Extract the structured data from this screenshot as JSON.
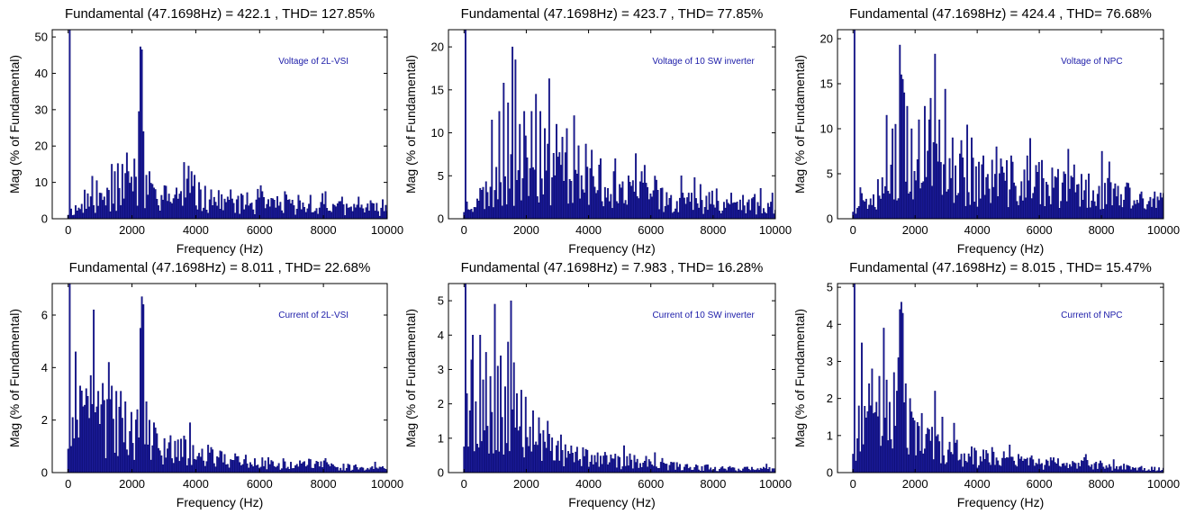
{
  "colors": {
    "bar": "#1c1c9a",
    "bar_edge": "#000066",
    "axis": "#000000",
    "annotation": "#1a1aa8"
  },
  "chart_data": [
    {
      "type": "bar",
      "title": "Fundamental (47.1698Hz) = 422.1 , THD= 127.85%",
      "annotation": "Voltage of 2L-VSI",
      "xlabel": "Frequency (Hz)",
      "ylabel": "Mag (% of Fundamental)",
      "xlim": [
        -500,
        10000
      ],
      "ylim": [
        0,
        52
      ],
      "xticks": [
        0,
        2000,
        4000,
        6000,
        8000,
        10000
      ],
      "yticks": [
        0,
        10,
        20,
        30,
        40,
        50
      ],
      "grid": false,
      "bin_hz": 47.1698,
      "fundamental_value": 100,
      "peaks": [
        [
          900,
          10.5
        ],
        [
          1350,
          15
        ],
        [
          1450,
          13
        ],
        [
          1550,
          15.2
        ],
        [
          1700,
          15
        ],
        [
          1800,
          12.5
        ],
        [
          1900,
          13
        ],
        [
          2000,
          11.5
        ],
        [
          2100,
          11.5
        ],
        [
          2200,
          29.5
        ],
        [
          2250,
          47.3
        ],
        [
          2300,
          46.5
        ],
        [
          2350,
          24
        ],
        [
          2450,
          12
        ],
        [
          2550,
          13
        ],
        [
          2650,
          9.5
        ],
        [
          3050,
          9
        ],
        [
          3400,
          8.5
        ],
        [
          3650,
          15.5
        ],
        [
          3750,
          14.5
        ],
        [
          3850,
          13
        ],
        [
          3950,
          12
        ],
        [
          4100,
          10
        ],
        [
          4300,
          9
        ],
        [
          4500,
          8
        ],
        [
          5100,
          8
        ],
        [
          5600,
          7.2
        ],
        [
          6100,
          7.5
        ],
        [
          6800,
          7.5
        ],
        [
          7200,
          6.5
        ],
        [
          7600,
          6.5
        ],
        [
          8050,
          7.5
        ],
        [
          8600,
          6
        ],
        [
          9100,
          6
        ],
        [
          9500,
          5
        ]
      ],
      "profile": [
        [
          0,
          2
        ],
        [
          1000,
          6
        ],
        [
          2000,
          8
        ],
        [
          3000,
          6.5
        ],
        [
          4000,
          6
        ],
        [
          6000,
          4
        ],
        [
          8000,
          3.5
        ],
        [
          10000,
          2.8
        ]
      ],
      "seed": 11
    },
    {
      "type": "bar",
      "title": "Fundamental (47.1698Hz) = 423.7 , THD= 77.85%",
      "annotation": "Voltage of 10 SW inverter",
      "xlabel": "Frequency (Hz)",
      "ylabel": "Mag (% of Fundamental)",
      "xlim": [
        -500,
        10000
      ],
      "ylim": [
        0,
        22
      ],
      "xticks": [
        0,
        2000,
        4000,
        6000,
        8000,
        10000
      ],
      "yticks": [
        0,
        5,
        10,
        15,
        20
      ],
      "grid": false,
      "bin_hz": 47.1698,
      "fundamental_value": 100,
      "peaks": [
        [
          900,
          11.5
        ],
        [
          1150,
          12.5
        ],
        [
          1250,
          15.8
        ],
        [
          1400,
          13.5
        ],
        [
          1550,
          20
        ],
        [
          1650,
          18.5
        ],
        [
          1800,
          11
        ],
        [
          1950,
          12.5
        ],
        [
          2150,
          12.5
        ],
        [
          2300,
          14.5
        ],
        [
          2450,
          12.5
        ],
        [
          2600,
          10.5
        ],
        [
          2750,
          16.3
        ],
        [
          2950,
          11
        ],
        [
          3150,
          9.5
        ],
        [
          3300,
          10.5
        ],
        [
          3550,
          12
        ],
        [
          3700,
          8.5
        ],
        [
          3900,
          8.7
        ],
        [
          4100,
          8
        ],
        [
          4400,
          7
        ],
        [
          4800,
          5.5
        ],
        [
          5300,
          5
        ],
        [
          5700,
          5.5
        ],
        [
          6200,
          4.5
        ],
        [
          7000,
          5
        ],
        [
          7600,
          4
        ],
        [
          8100,
          3.5
        ],
        [
          8600,
          3
        ],
        [
          9300,
          2.5
        ],
        [
          9900,
          3
        ]
      ],
      "profile": [
        [
          0,
          1.5
        ],
        [
          1000,
          4
        ],
        [
          2000,
          6.5
        ],
        [
          3000,
          6
        ],
        [
          4000,
          4.5
        ],
        [
          6000,
          2.8
        ],
        [
          8000,
          2
        ],
        [
          10000,
          1.5
        ]
      ],
      "seed": 23
    },
    {
      "type": "bar",
      "title": "Fundamental (47.1698Hz) = 424.4 , THD= 76.68%",
      "annotation": "Voltage of NPC",
      "xlabel": "Frequency (Hz)",
      "ylabel": "Mag (% of Fundamental)",
      "xlim": [
        -500,
        10000
      ],
      "ylim": [
        0,
        21
      ],
      "xticks": [
        0,
        2000,
        4000,
        6000,
        8000,
        10000
      ],
      "yticks": [
        0,
        5,
        10,
        15,
        20
      ],
      "grid": false,
      "bin_hz": 47.1698,
      "fundamental_value": 100,
      "peaks": [
        [
          1100,
          11.5
        ],
        [
          1250,
          10
        ],
        [
          1350,
          10.5
        ],
        [
          1500,
          19.3
        ],
        [
          1550,
          16
        ],
        [
          1600,
          15.5
        ],
        [
          1650,
          14
        ],
        [
          1750,
          12.5
        ],
        [
          1900,
          10
        ],
        [
          2100,
          11
        ],
        [
          2300,
          12.5
        ],
        [
          2450,
          11
        ],
        [
          2650,
          18.3
        ],
        [
          2800,
          11
        ],
        [
          2950,
          14.4
        ],
        [
          3200,
          9
        ],
        [
          3500,
          8.7
        ],
        [
          3800,
          9
        ],
        [
          4200,
          7
        ],
        [
          4600,
          8
        ],
        [
          5100,
          7
        ],
        [
          5600,
          7
        ],
        [
          6100,
          6.5
        ],
        [
          6600,
          5.5
        ],
        [
          7100,
          6
        ],
        [
          7600,
          5
        ],
        [
          8200,
          4.5
        ],
        [
          8800,
          4
        ],
        [
          9300,
          3
        ],
        [
          9700,
          3
        ]
      ],
      "profile": [
        [
          0,
          1.5
        ],
        [
          1000,
          4.5
        ],
        [
          2000,
          6.5
        ],
        [
          3000,
          5.5
        ],
        [
          4000,
          4.8
        ],
        [
          6000,
          4
        ],
        [
          8000,
          3.2
        ],
        [
          10000,
          2
        ]
      ],
      "seed": 37
    },
    {
      "type": "bar",
      "title": "Fundamental (47.1698Hz) = 8.011 , THD= 22.68%",
      "annotation": "Current of 2L-VSI",
      "xlabel": "Frequency (Hz)",
      "ylabel": "Mag (% of Fundamental)",
      "xlim": [
        -500,
        10000
      ],
      "ylim": [
        0,
        7.2
      ],
      "xticks": [
        0,
        2000,
        4000,
        6000,
        8000,
        10000
      ],
      "yticks": [
        0,
        2,
        4,
        6
      ],
      "grid": false,
      "bin_hz": 47.1698,
      "fundamental_value": 100,
      "peaks": [
        [
          100,
          1
        ],
        [
          150,
          2.1
        ],
        [
          250,
          4.6
        ],
        [
          400,
          3.3
        ],
        [
          550,
          3.2
        ],
        [
          700,
          3.7
        ],
        [
          800,
          6.2
        ],
        [
          950,
          3.1
        ],
        [
          1100,
          3.4
        ],
        [
          1250,
          4.2
        ],
        [
          1350,
          3.3
        ],
        [
          1500,
          3.1
        ],
        [
          1650,
          3.1
        ],
        [
          1800,
          2.7
        ],
        [
          2000,
          2.3
        ],
        [
          2150,
          2.4
        ],
        [
          2250,
          5.5
        ],
        [
          2300,
          6.7
        ],
        [
          2350,
          6.4
        ],
        [
          2450,
          2.7
        ],
        [
          2550,
          2
        ],
        [
          2700,
          1.9
        ],
        [
          3000,
          1.3
        ],
        [
          3350,
          1.2
        ],
        [
          3650,
          1.4
        ],
        [
          3800,
          1.9
        ],
        [
          4200,
          0.9
        ],
        [
          4800,
          0.8
        ],
        [
          5500,
          0.5
        ],
        [
          6200,
          0.45
        ],
        [
          7000,
          0.4
        ],
        [
          7600,
          0.5
        ],
        [
          8300,
          0.3
        ],
        [
          9000,
          0.3
        ]
      ],
      "profile": [
        [
          0,
          1.8
        ],
        [
          1000,
          2
        ],
        [
          2000,
          1.6
        ],
        [
          3000,
          1
        ],
        [
          4000,
          0.8
        ],
        [
          6000,
          0.4
        ],
        [
          8000,
          0.3
        ],
        [
          10000,
          0.15
        ]
      ],
      "seed": 41
    },
    {
      "type": "bar",
      "title": "Fundamental (47.1698Hz) = 7.983 , THD= 16.28%",
      "annotation": "Current of 10 SW inverter",
      "xlabel": "Frequency (Hz)",
      "ylabel": "Mag (% of Fundamental)",
      "xlim": [
        -500,
        10000
      ],
      "ylim": [
        0,
        5.5
      ],
      "xticks": [
        0,
        2000,
        4000,
        6000,
        8000,
        10000
      ],
      "yticks": [
        0,
        1,
        2,
        3,
        4,
        5
      ],
      "grid": false,
      "bin_hz": 47.1698,
      "fundamental_value": 100,
      "peaks": [
        [
          100,
          2.3
        ],
        [
          200,
          1.8
        ],
        [
          300,
          4.0
        ],
        [
          500,
          4.0
        ],
        [
          600,
          2.7
        ],
        [
          700,
          3.5
        ],
        [
          850,
          2.8
        ],
        [
          1000,
          4.9
        ],
        [
          1100,
          3.1
        ],
        [
          1200,
          3.4
        ],
        [
          1300,
          2.5
        ],
        [
          1400,
          3.8
        ],
        [
          1500,
          5.0
        ],
        [
          1600,
          3.2
        ],
        [
          1700,
          2.3
        ],
        [
          1850,
          2.4
        ],
        [
          2000,
          2.2
        ],
        [
          2200,
          1.8
        ],
        [
          2400,
          1.6
        ],
        [
          2700,
          1.5
        ],
        [
          3100,
          1.1
        ],
        [
          3600,
          0.6
        ],
        [
          4200,
          0.5
        ],
        [
          4800,
          0.4
        ],
        [
          5500,
          0.3
        ],
        [
          6500,
          0.25
        ],
        [
          7500,
          0.2
        ],
        [
          8500,
          0.15
        ]
      ],
      "profile": [
        [
          0,
          1.5
        ],
        [
          1000,
          1.8
        ],
        [
          2000,
          1.2
        ],
        [
          3000,
          0.7
        ],
        [
          4000,
          0.45
        ],
        [
          6000,
          0.25
        ],
        [
          8000,
          0.15
        ],
        [
          10000,
          0.1
        ]
      ],
      "seed": 53
    },
    {
      "type": "bar",
      "title": "Fundamental (47.1698Hz) = 8.015 , THD= 15.47%",
      "annotation": "Current of NPC",
      "xlabel": "Frequency (Hz)",
      "ylabel": "Mag (% of Fundamental)",
      "xlim": [
        -500,
        10000
      ],
      "ylim": [
        0,
        5.1
      ],
      "xticks": [
        0,
        2000,
        4000,
        6000,
        8000,
        10000
      ],
      "yticks": [
        0,
        1,
        2,
        3,
        4,
        5
      ],
      "grid": false,
      "bin_hz": 47.1698,
      "fundamental_value": 100,
      "peaks": [
        [
          200,
          1.8
        ],
        [
          300,
          3.5
        ],
        [
          500,
          2.4
        ],
        [
          600,
          2.8
        ],
        [
          750,
          1.9
        ],
        [
          850,
          2.6
        ],
        [
          1000,
          3.9
        ],
        [
          1100,
          2.5
        ],
        [
          1200,
          1.9
        ],
        [
          1300,
          2.7
        ],
        [
          1400,
          2.2
        ],
        [
          1450,
          3.1
        ],
        [
          1500,
          4.4
        ],
        [
          1550,
          4.6
        ],
        [
          1600,
          4.3
        ],
        [
          1700,
          2.4
        ],
        [
          1850,
          2.0
        ],
        [
          2000,
          1.4
        ],
        [
          2200,
          1.6
        ],
        [
          2400,
          1.2
        ],
        [
          2650,
          2.2
        ],
        [
          2900,
          1.5
        ],
        [
          3300,
          0.8
        ],
        [
          3800,
          0.7
        ],
        [
          4300,
          0.6
        ],
        [
          5000,
          0.4
        ],
        [
          5800,
          0.35
        ],
        [
          6800,
          0.25
        ],
        [
          7800,
          0.25
        ],
        [
          8800,
          0.2
        ]
      ],
      "profile": [
        [
          0,
          1.0
        ],
        [
          1000,
          1.6
        ],
        [
          2000,
          1.1
        ],
        [
          3000,
          0.6
        ],
        [
          4000,
          0.45
        ],
        [
          6000,
          0.3
        ],
        [
          8000,
          0.2
        ],
        [
          10000,
          0.1
        ]
      ],
      "seed": 67
    }
  ]
}
